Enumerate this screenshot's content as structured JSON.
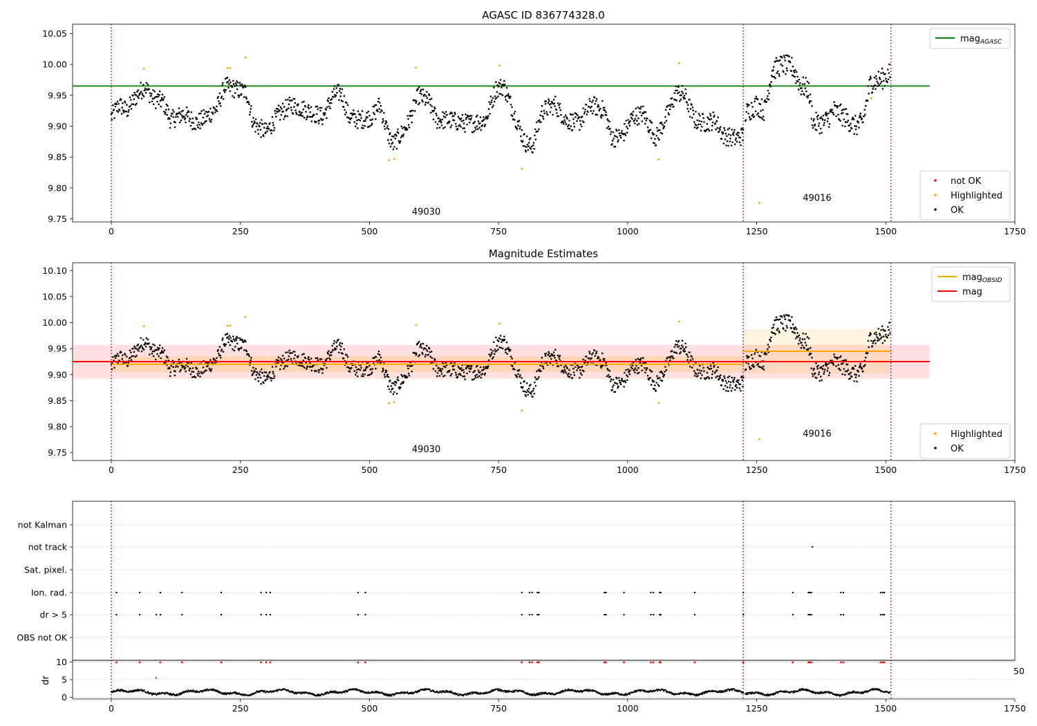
{
  "chart_data": [
    {
      "type": "scatter",
      "title": "AGASC ID 836774328.0",
      "xlim": [
        -75,
        1750
      ],
      "ylim": [
        9.745,
        10.065
      ],
      "x_ticks": [
        0,
        250,
        500,
        750,
        1000,
        1250,
        1500,
        1750
      ],
      "y_ticks": [
        9.75,
        9.8,
        9.85,
        9.9,
        9.95,
        10.0,
        10.05
      ],
      "vlines": [
        0,
        1224,
        1510
      ],
      "obsid_labels": [
        {
          "text": "49030",
          "x": 610,
          "y": 9.757
        },
        {
          "text": "49016",
          "x": 1367,
          "y": 9.779
        }
      ],
      "reference_lines": [
        {
          "name": "mag",
          "subscript": "AGASC",
          "value": 9.965,
          "x_range": [
            -75,
            1585
          ],
          "color": "#008000"
        }
      ],
      "legend": {
        "upper": [
          {
            "name": "mag",
            "subscript": "AGASC",
            "color": "#008000",
            "kind": "line"
          }
        ],
        "lower": [
          {
            "name": "not OK",
            "color": "#ff0000",
            "kind": "marker"
          },
          {
            "name": "Highlighted",
            "color": "#ffa500",
            "kind": "marker"
          },
          {
            "name": "OK",
            "color": "#000000",
            "kind": "marker"
          }
        ]
      },
      "ok_segments": [
        [
          0,
          9.915
        ],
        [
          15,
          9.935
        ],
        [
          30,
          9.925
        ],
        [
          50,
          9.95
        ],
        [
          65,
          9.965
        ],
        [
          80,
          9.945
        ],
        [
          100,
          9.94
        ],
        [
          115,
          9.91
        ],
        [
          140,
          9.92
        ],
        [
          165,
          9.905
        ],
        [
          185,
          9.915
        ],
        [
          205,
          9.93
        ],
        [
          220,
          9.965
        ],
        [
          240,
          9.96
        ],
        [
          262,
          9.955
        ],
        [
          275,
          9.905
        ],
        [
          300,
          9.89
        ],
        [
          325,
          9.92
        ],
        [
          350,
          9.935
        ],
        [
          380,
          9.925
        ],
        [
          410,
          9.915
        ],
        [
          430,
          9.95
        ],
        [
          445,
          9.955
        ],
        [
          460,
          9.915
        ],
        [
          480,
          9.91
        ],
        [
          505,
          9.915
        ],
        [
          520,
          9.935
        ],
        [
          535,
          9.89
        ],
        [
          545,
          9.87
        ],
        [
          560,
          9.885
        ],
        [
          575,
          9.905
        ],
        [
          595,
          9.95
        ],
        [
          615,
          9.94
        ],
        [
          630,
          9.91
        ],
        [
          655,
          9.91
        ],
        [
          680,
          9.905
        ],
        [
          700,
          9.905
        ],
        [
          725,
          9.91
        ],
        [
          745,
          9.96
        ],
        [
          760,
          9.965
        ],
        [
          785,
          9.91
        ],
        [
          800,
          9.875
        ],
        [
          815,
          9.865
        ],
        [
          835,
          9.925
        ],
        [
          860,
          9.935
        ],
        [
          880,
          9.91
        ],
        [
          905,
          9.905
        ],
        [
          930,
          9.935
        ],
        [
          955,
          9.925
        ],
        [
          970,
          9.88
        ],
        [
          990,
          9.885
        ],
        [
          1010,
          9.915
        ],
        [
          1030,
          9.92
        ],
        [
          1055,
          9.88
        ],
        [
          1075,
          9.915
        ],
        [
          1095,
          9.955
        ],
        [
          1110,
          9.95
        ],
        [
          1130,
          9.91
        ],
        [
          1150,
          9.905
        ],
        [
          1170,
          9.91
        ],
        [
          1185,
          9.885
        ],
        [
          1210,
          9.88
        ],
        [
          1224,
          9.885
        ]
      ],
      "ok_segments_2": [
        [
          1228,
          9.92
        ],
        [
          1250,
          9.935
        ],
        [
          1265,
          9.925
        ],
        [
          1280,
          9.99
        ],
        [
          1300,
          10.0
        ],
        [
          1320,
          9.995
        ],
        [
          1335,
          9.965
        ],
        [
          1350,
          9.96
        ],
        [
          1360,
          9.905
        ],
        [
          1380,
          9.905
        ],
        [
          1400,
          9.925
        ],
        [
          1420,
          9.915
        ],
        [
          1440,
          9.9
        ],
        [
          1455,
          9.905
        ],
        [
          1470,
          9.97
        ],
        [
          1490,
          9.975
        ],
        [
          1508,
          9.985
        ]
      ],
      "highlighted_points": [
        [
          63,
          9.993
        ],
        [
          225,
          9.994
        ],
        [
          230,
          9.994
        ],
        [
          260,
          10.011
        ],
        [
          590,
          9.995
        ],
        [
          752,
          9.998
        ],
        [
          795,
          9.831
        ],
        [
          538,
          9.845
        ],
        [
          548,
          9.847
        ],
        [
          1060,
          9.846
        ],
        [
          1100,
          10.002
        ],
        [
          1255,
          9.776
        ],
        [
          1472,
          9.945
        ]
      ],
      "not_ok_points": []
    },
    {
      "type": "scatter",
      "title": "Magnitude Estimates",
      "xlim": [
        -75,
        1750
      ],
      "ylim": [
        9.735,
        10.115
      ],
      "x_ticks": [
        0,
        250,
        500,
        750,
        1000,
        1250,
        1500,
        1750
      ],
      "y_ticks": [
        9.75,
        9.8,
        9.85,
        9.9,
        9.95,
        10.0,
        10.05,
        10.1
      ],
      "vlines": [
        0,
        1224,
        1510
      ],
      "obsid_labels": [
        {
          "text": "49030",
          "x": 610,
          "y": 9.751
        },
        {
          "text": "49016",
          "x": 1367,
          "y": 9.781
        }
      ],
      "bands": [
        {
          "x_range": [
            -75,
            1585
          ],
          "y_range": [
            9.892,
            9.957
          ],
          "color": "#ff0000",
          "opacity": 0.12
        },
        {
          "x_range": [
            0,
            1224
          ],
          "y_range": [
            9.905,
            9.935
          ],
          "color": "#ffa500",
          "opacity": 0.18
        },
        {
          "x_range": [
            1224,
            1510
          ],
          "y_range": [
            9.902,
            9.987
          ],
          "color": "#ffa500",
          "opacity": 0.12
        }
      ],
      "reference_lines": [
        {
          "name": "mag",
          "subscript": "OBSID",
          "value": 9.92,
          "x_range": [
            0,
            1224
          ],
          "color": "#ffa500"
        },
        {
          "name": "mag",
          "subscript": "OBSID",
          "value": 9.945,
          "x_range": [
            1224,
            1510
          ],
          "color": "#ffa500"
        },
        {
          "name": "mag",
          "subscript": "",
          "value": 9.925,
          "x_range": [
            -75,
            1585
          ],
          "color": "#ff0000"
        }
      ],
      "legend": {
        "upper": [
          {
            "name": "mag",
            "subscript": "OBSID",
            "color": "#ffa500",
            "kind": "line"
          },
          {
            "name": "mag",
            "subscript": "",
            "color": "#ff0000",
            "kind": "line"
          }
        ],
        "lower": [
          {
            "name": "Highlighted",
            "color": "#ffa500",
            "kind": "marker"
          },
          {
            "name": "OK",
            "color": "#000000",
            "kind": "marker"
          }
        ]
      },
      "same_points_as_panel": 0
    },
    {
      "type": "scatter",
      "title": "",
      "xlim": [
        -75,
        1750
      ],
      "categories": [
        "not Kalman",
        "not track",
        "Sat. pixel.",
        "Ion. rad.",
        "dr > 5",
        "OBS not OK"
      ],
      "flag_points": {
        "not track": [
          1358
        ],
        "Ion. rad.": [
          10,
          55,
          95,
          137,
          213,
          290,
          300,
          308,
          478,
          492,
          795,
          810,
          815,
          825,
          828,
          955,
          958,
          993,
          1045,
          1050,
          1062,
          1064,
          1130,
          1224,
          1320,
          1350,
          1353,
          1356,
          1413,
          1418,
          1490,
          1494,
          1497
        ],
        "dr > 5": [
          10,
          55,
          87,
          95,
          137,
          213,
          290,
          300,
          308,
          478,
          492,
          795,
          810,
          815,
          825,
          828,
          955,
          958,
          993,
          1045,
          1050,
          1062,
          1064,
          1130,
          1224,
          1320,
          1350,
          1353,
          1356,
          1413,
          1418,
          1490,
          1494,
          1497
        ]
      },
      "dr_axis": {
        "ylabel": "dr",
        "ylim": [
          -0.5,
          10.5
        ],
        "y_ticks": [
          0,
          5,
          10
        ],
        "clipped_value": 10,
        "clipped_points": [
          10,
          55,
          95,
          137,
          213,
          290,
          300,
          308,
          478,
          492,
          795,
          810,
          815,
          825,
          828,
          955,
          958,
          993,
          1045,
          1050,
          1062,
          1064,
          1130,
          1224,
          1320,
          1350,
          1353,
          1356,
          1413,
          1418,
          1490,
          1494,
          1497
        ],
        "outlier_points": [
          [
            87,
            5.5
          ]
        ],
        "overflow_label": "50"
      },
      "x_ticks": [
        0,
        250,
        500,
        750,
        1000,
        1250,
        1500,
        1750
      ]
    }
  ]
}
